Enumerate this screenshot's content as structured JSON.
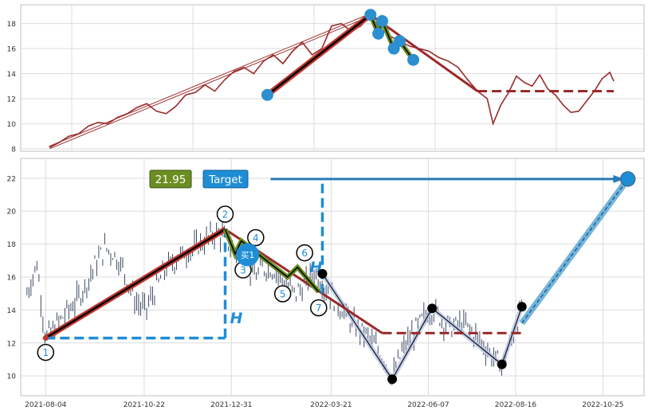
{
  "chart_data": [
    {
      "type": "line",
      "panel": "top",
      "title": "",
      "xlabel": "",
      "ylabel": "",
      "ylim": [
        7.8,
        19.5
      ],
      "yticks": [
        8,
        10,
        12,
        14,
        16,
        18
      ],
      "grid": true,
      "price_line_color": "#9b2a2a",
      "price_series": [
        [
          0,
          8.1
        ],
        [
          5,
          8.5
        ],
        [
          10,
          9.0
        ],
        [
          15,
          9.2
        ],
        [
          20,
          9.8
        ],
        [
          25,
          10.1
        ],
        [
          30,
          10.0
        ],
        [
          35,
          10.5
        ],
        [
          40,
          10.8
        ],
        [
          45,
          11.3
        ],
        [
          50,
          11.6
        ],
        [
          55,
          11.0
        ],
        [
          60,
          10.8
        ],
        [
          65,
          11.4
        ],
        [
          70,
          12.3
        ],
        [
          75,
          12.5
        ],
        [
          80,
          13.1
        ],
        [
          85,
          12.6
        ],
        [
          90,
          13.5
        ],
        [
          95,
          14.2
        ],
        [
          100,
          14.5
        ],
        [
          105,
          14.0
        ],
        [
          110,
          15.0
        ],
        [
          115,
          15.5
        ],
        [
          120,
          14.8
        ],
        [
          125,
          15.8
        ],
        [
          130,
          16.5
        ],
        [
          135,
          15.5
        ],
        [
          140,
          16.0
        ],
        [
          145,
          17.8
        ],
        [
          150,
          18.0
        ],
        [
          155,
          17.4
        ],
        [
          160,
          17.8
        ],
        [
          165,
          18.7
        ],
        [
          170,
          17.6
        ],
        [
          175,
          17.0
        ],
        [
          180,
          16.6
        ],
        [
          185,
          16.2
        ],
        [
          190,
          16.0
        ],
        [
          195,
          15.8
        ],
        [
          200,
          15.3
        ],
        [
          205,
          15.0
        ],
        [
          210,
          14.5
        ],
        [
          215,
          13.5
        ],
        [
          220,
          12.6
        ],
        [
          225,
          12.0
        ],
        [
          228,
          10.0
        ],
        [
          232,
          11.5
        ],
        [
          236,
          12.5
        ],
        [
          240,
          13.8
        ],
        [
          244,
          13.3
        ],
        [
          248,
          13.0
        ],
        [
          252,
          13.9
        ],
        [
          256,
          12.8
        ],
        [
          260,
          12.3
        ],
        [
          264,
          11.5
        ],
        [
          268,
          10.9
        ],
        [
          272,
          11.0
        ],
        [
          276,
          11.8
        ],
        [
          280,
          12.6
        ],
        [
          284,
          13.6
        ],
        [
          288,
          14.1
        ],
        [
          290,
          13.4
        ]
      ],
      "trend_line": {
        "from": [
          0,
          8.1
        ],
        "to": [
          165,
          18.7
        ]
      },
      "leg_up": {
        "from": [
          112,
          12.3
        ],
        "to": [
          165,
          18.7
        ]
      },
      "leg_down": {
        "from": [
          165,
          18.7
        ],
        "to": [
          220,
          12.6
        ]
      },
      "level_line": {
        "y": 12.6,
        "from_x": 220,
        "to_x": 290
      },
      "markers": [
        {
          "x": 112,
          "y": 12.3
        },
        {
          "x": 165,
          "y": 18.7
        },
        {
          "x": 169,
          "y": 17.2
        },
        {
          "x": 171,
          "y": 18.2
        },
        {
          "x": 177,
          "y": 16.0
        },
        {
          "x": 180,
          "y": 16.6
        },
        {
          "x": 187,
          "y": 15.1
        }
      ],
      "zigzag": [
        [
          165,
          18.7
        ],
        [
          169,
          17.2
        ],
        [
          171,
          18.2
        ],
        [
          177,
          16.0
        ],
        [
          180,
          16.6
        ],
        [
          187,
          15.1
        ]
      ]
    },
    {
      "type": "candlestick",
      "panel": "bottom",
      "title": "",
      "xlabel": "",
      "ylabel": "",
      "ylim": [
        8.8,
        23.2
      ],
      "yticks": [
        10,
        12,
        14,
        16,
        18,
        20,
        22
      ],
      "xlim": [
        "2021-07-15",
        "2022-11-27"
      ],
      "xticks": [
        "2021-08-04",
        "2021-10-22",
        "2021-12-31",
        "2022-03-21",
        "2022-06-07",
        "2022-08-16",
        "2022-10-25"
      ],
      "grid": true,
      "candle_color": "#3c4a63",
      "candle_path": [
        [
          "2021-07-20",
          15.0
        ],
        [
          "2021-07-28",
          16.8
        ],
        [
          "2021-08-04",
          12.3
        ],
        [
          "2021-08-12",
          13.0
        ],
        [
          "2021-08-20",
          13.8
        ],
        [
          "2021-08-28",
          14.5
        ],
        [
          "2021-09-05",
          15.5
        ],
        [
          "2021-09-13",
          16.8
        ],
        [
          "2021-09-21",
          17.8
        ],
        [
          "2021-09-29",
          17.3
        ],
        [
          "2021-10-07",
          16.2
        ],
        [
          "2021-10-15",
          14.5
        ],
        [
          "2021-10-23",
          14.0
        ],
        [
          "2021-10-31",
          15.2
        ],
        [
          "2021-11-08",
          16.5
        ],
        [
          "2021-11-16",
          17.0
        ],
        [
          "2021-11-24",
          17.5
        ],
        [
          "2021-12-02",
          17.8
        ],
        [
          "2021-12-10",
          18.2
        ],
        [
          "2021-12-18",
          18.7
        ],
        [
          "2021-12-26",
          18.4
        ],
        [
          "2022-01-03",
          17.5
        ],
        [
          "2022-01-11",
          16.9
        ],
        [
          "2022-01-19",
          16.0
        ],
        [
          "2022-01-27",
          16.6
        ],
        [
          "2022-02-04",
          16.4
        ],
        [
          "2022-02-12",
          15.6
        ],
        [
          "2022-02-20",
          15.0
        ],
        [
          "2022-02-28",
          15.5
        ],
        [
          "2022-03-08",
          16.3
        ],
        [
          "2022-03-16",
          15.4
        ],
        [
          "2022-03-24",
          14.6
        ],
        [
          "2022-04-01",
          13.8
        ],
        [
          "2022-04-09",
          13.0
        ],
        [
          "2022-04-17",
          12.6
        ],
        [
          "2022-04-25",
          11.8
        ],
        [
          "2022-05-03",
          11.0
        ],
        [
          "2022-05-09",
          9.8
        ],
        [
          "2022-05-17",
          11.5
        ],
        [
          "2022-05-25",
          12.5
        ],
        [
          "2022-06-02",
          13.4
        ],
        [
          "2022-06-10",
          14.1
        ],
        [
          "2022-06-18",
          13.4
        ],
        [
          "2022-06-26",
          12.9
        ],
        [
          "2022-07-04",
          13.2
        ],
        [
          "2022-07-12",
          12.7
        ],
        [
          "2022-07-20",
          12.0
        ],
        [
          "2022-07-28",
          11.2
        ],
        [
          "2022-08-05",
          10.7
        ],
        [
          "2022-08-13",
          12.2
        ],
        [
          "2022-08-21",
          14.2
        ]
      ],
      "badge_value": "21.95",
      "badge_value_color": "#6b8e23",
      "target_label": "Target",
      "target_color": "#1f8dd6",
      "target_y": 21.95,
      "target_arrow_from_x": "2022-03-14",
      "target_arrow_to_x": "2022-11-10",
      "target_point": {
        "x": "2022-11-14",
        "y": 21.95
      },
      "projection_line": {
        "from": [
          "2022-08-21",
          13.2
        ],
        "to": [
          "2022-11-14",
          21.95
        ]
      },
      "wave_points": [
        {
          "label": "1",
          "x": "2021-08-04",
          "y": 12.3
        },
        {
          "label": "2",
          "x": "2021-12-26",
          "y": 18.9
        },
        {
          "label": "3",
          "x": "2022-01-03",
          "y": 17.4
        },
        {
          "label": "4",
          "x": "2022-01-08",
          "y": 18.2
        },
        {
          "label": "5",
          "x": "2022-02-14",
          "y": 16.0
        },
        {
          "label": "6",
          "x": "2022-02-22",
          "y": 16.6
        },
        {
          "label": "7",
          "x": "2022-03-11",
          "y": 15.1
        }
      ],
      "label_offsets_note": "",
      "buy_marker_label": "买1",
      "buy_marker": {
        "x": "2022-01-04",
        "y": 17.4
      },
      "height_label": "H",
      "height_left": {
        "x": "2021-12-26",
        "from": 12.3,
        "to": 18.9
      },
      "height_right": {
        "x": "2022-03-14",
        "from": 15.0,
        "to": 21.95
      },
      "base_level": {
        "y": 12.3,
        "from_x": "2021-08-04",
        "to_x": "2021-12-26"
      },
      "level_line": {
        "y": 12.6,
        "from_x": "2022-05-01",
        "to_x": "2022-08-21"
      },
      "leg_up": {
        "from": [
          "2021-08-04",
          12.3
        ],
        "to": [
          "2021-12-26",
          18.9
        ]
      },
      "leg_down": {
        "from": [
          "2021-12-26",
          18.9
        ],
        "to": [
          "2022-05-01",
          12.6
        ]
      },
      "black_points": [
        {
          "x": "2022-03-14",
          "y": 16.2
        },
        {
          "x": "2022-05-09",
          "y": 9.8
        },
        {
          "x": "2022-06-10",
          "y": 14.1
        },
        {
          "x": "2022-08-05",
          "y": 10.7
        },
        {
          "x": "2022-08-21",
          "y": 14.2
        }
      ]
    }
  ]
}
